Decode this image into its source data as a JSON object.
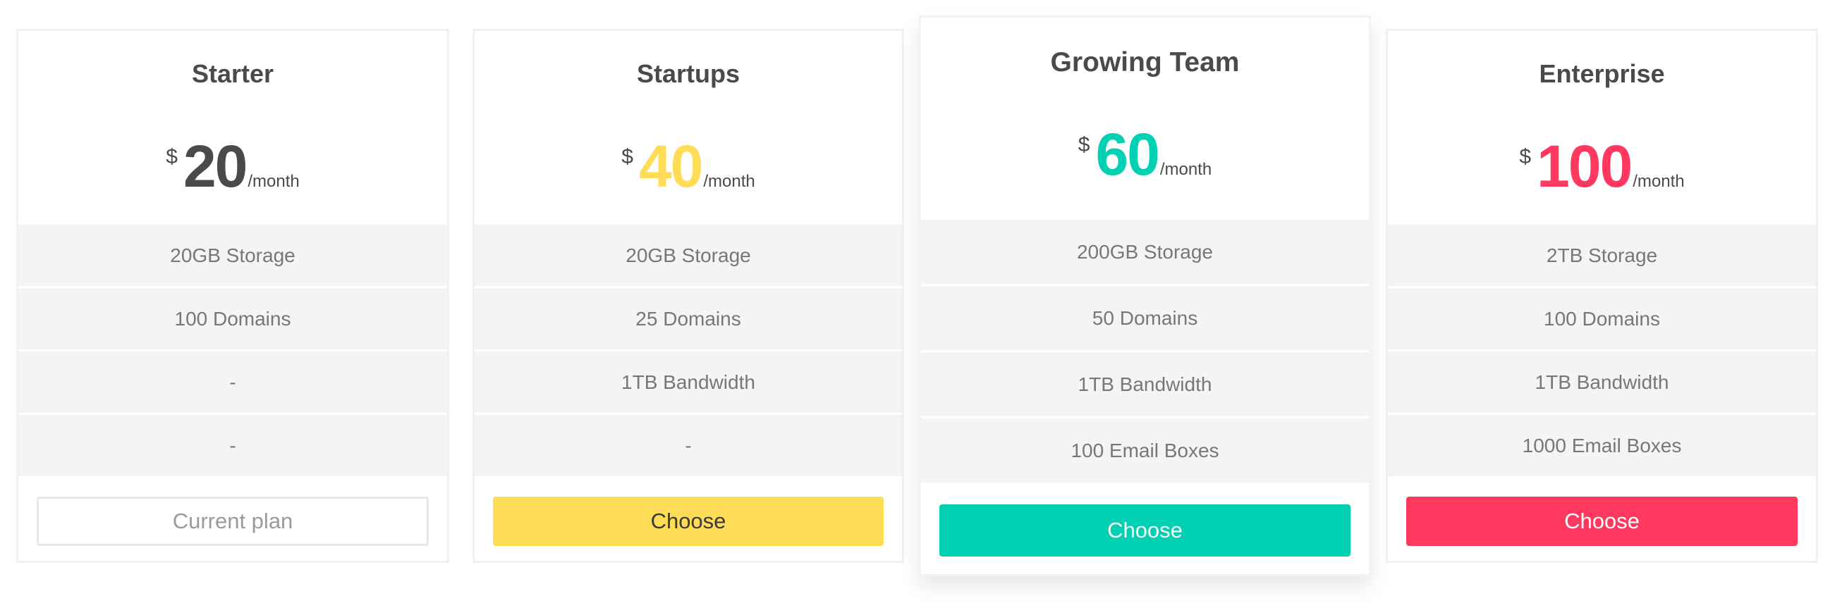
{
  "currency_symbol": "$",
  "period": "/month",
  "plans": [
    {
      "name": "Starter",
      "price": "20",
      "color": "#4a4a4a",
      "features": [
        "20GB Storage",
        "100 Domains",
        "-",
        "-"
      ],
      "button": "Current plan"
    },
    {
      "name": "Startups",
      "price": "40",
      "color": "#ffdc55",
      "features": [
        "20GB Storage",
        "25 Domains",
        "1TB Bandwidth",
        "-"
      ],
      "button": "Choose"
    },
    {
      "name": "Growing Team",
      "price": "60",
      "color": "#00d1b2",
      "features": [
        "200GB Storage",
        "50 Domains",
        "1TB Bandwidth",
        "100 Email Boxes"
      ],
      "button": "Choose",
      "featured": true
    },
    {
      "name": "Enterprise",
      "price": "100",
      "color": "#ff3860",
      "features": [
        "2TB Storage",
        "100 Domains",
        "1TB Bandwidth",
        "1000 Email Boxes"
      ],
      "button": "Choose"
    }
  ]
}
